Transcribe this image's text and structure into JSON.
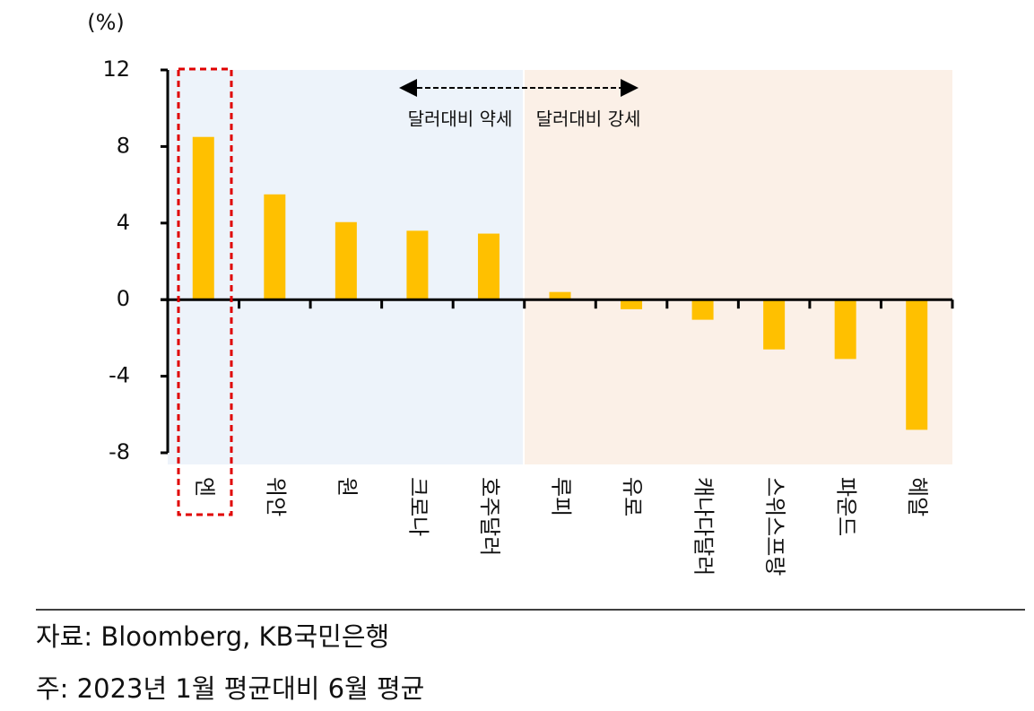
{
  "chart_data": {
    "type": "bar",
    "y_unit": "(%)",
    "categories": [
      "엔",
      "위안",
      "원",
      "크로나",
      "호주달러",
      "루피",
      "유로",
      "캐나다달러",
      "스위스프랑",
      "파운드",
      "헤알"
    ],
    "values": [
      8.5,
      5.5,
      4.05,
      3.6,
      3.45,
      0.4,
      -0.5,
      -1.05,
      -2.6,
      -3.1,
      -6.8
    ],
    "color": "#ffc000",
    "ylim": [
      -8,
      12
    ],
    "yticks": [
      -8,
      -4,
      0,
      4,
      8,
      12
    ],
    "annotations": [
      "달러대비 약세",
      "달러대비 강세"
    ],
    "source": "자료: Bloomberg, KB국민은행",
    "note": "주: 2023년 1월 평균대비 6월 평균"
  }
}
